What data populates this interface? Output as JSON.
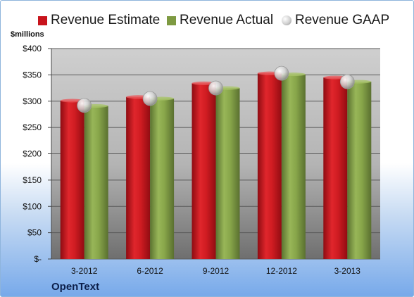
{
  "chart_data": {
    "type": "bar",
    "categories": [
      "3-2012",
      "6-2012",
      "9-2012",
      "12-2012",
      "3-2013"
    ],
    "series": [
      {
        "name": "Revenue Estimate",
        "values": [
          301,
          308,
          334,
          353,
          345
        ],
        "color": "#c8141c"
      },
      {
        "name": "Revenue Actual",
        "values": [
          291,
          305,
          325,
          351,
          337
        ],
        "color": "#7e9a42"
      },
      {
        "name": "Revenue GAAP",
        "values": [
          292,
          305,
          325,
          353,
          337
        ],
        "color": "#c0c0c0",
        "marker": "circle"
      }
    ],
    "ylabel": "$millions",
    "ylim": [
      0,
      400
    ],
    "ytick_labels": [
      "$-",
      "$50",
      "$100",
      "$150",
      "$200",
      "$250",
      "$300",
      "$350",
      "$400"
    ],
    "grid": true,
    "legend": "top"
  },
  "company": "OpenText"
}
